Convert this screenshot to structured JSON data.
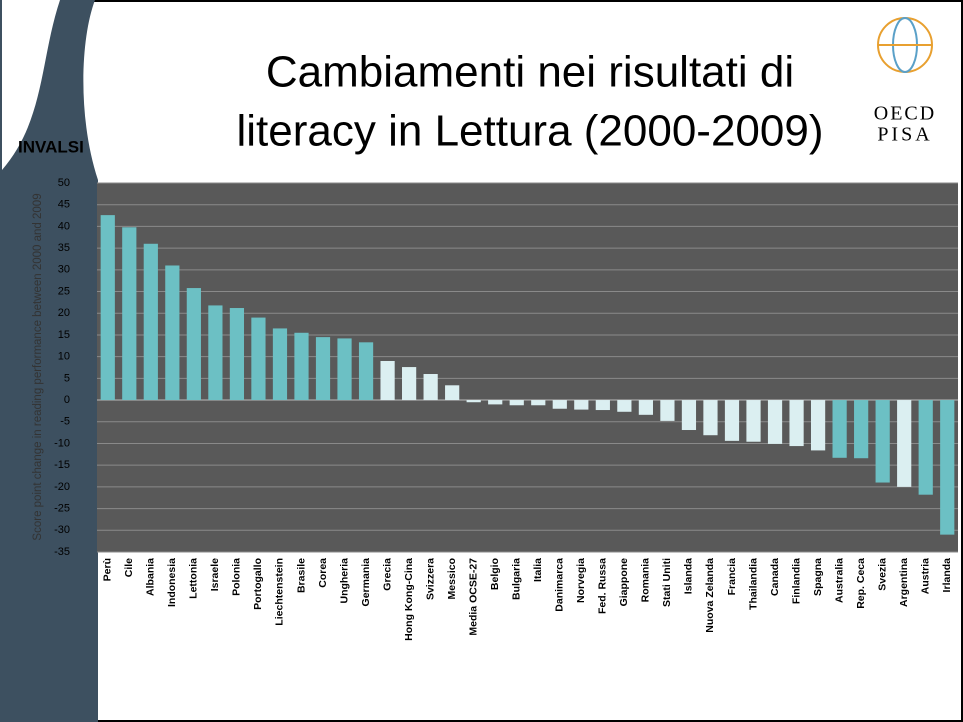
{
  "header": {
    "title_line1": "Cambiamenti nei risultati di",
    "title_line2": "literacy in Lettura (2000-2009)",
    "brand": "INVALSI",
    "logo_top": "OECD",
    "logo_bottom": "PISA"
  },
  "chart_data": {
    "type": "bar",
    "y_label": "Score point change in reading performance between 2000 and 2009",
    "categories": [
      "Perù",
      "Cile",
      "Albania",
      "Indonesia",
      "Lettonia",
      "Israele",
      "Polonia",
      "Portogallo",
      "Liechtenstein",
      "Brasile",
      "Corea",
      "Ungheria",
      "Germania",
      "Grecia",
      "Hong Kong-Cina",
      "Svizzera",
      "Messico",
      "Media OCSE-27",
      "Belgio",
      "Bulgaria",
      "Italia",
      "Danimarca",
      "Norvegia",
      "Fed. Russa",
      "Giappone",
      "Romania",
      "Stati Uniti",
      "Islanda",
      "Nuova Zelanda",
      "Francia",
      "Thailandia",
      "Canada",
      "Finlandia",
      "Spagna",
      "Australia",
      "Rep. Ceca",
      "Svezia",
      "Argentina",
      "Austria",
      "Irlanda"
    ],
    "values": [
      42.6,
      39.8,
      36,
      31,
      25.8,
      21.8,
      21.2,
      19,
      16.5,
      15.5,
      14.5,
      14.2,
      13.3,
      9,
      7.6,
      6,
      3.4,
      -0.5,
      -1,
      -1.2,
      -1.2,
      -2,
      -2.2,
      -2.3,
      -2.7,
      -3.4,
      -4.8,
      -6.9,
      -8.1,
      -9.4,
      -9.6,
      -10.1,
      -10.6,
      -11.6,
      -13.3,
      -13.4,
      -19,
      -20,
      -21.8,
      -31
    ],
    "colors": [
      "#6cc0c4",
      "#6cc0c4",
      "#6cc0c4",
      "#6cc0c4",
      "#6cc0c4",
      "#6cc0c4",
      "#6cc0c4",
      "#6cc0c4",
      "#6cc0c4",
      "#6cc0c4",
      "#6cc0c4",
      "#6cc0c4",
      "#6cc0c4",
      "#dbeff1",
      "#dbeff1",
      "#dbeff1",
      "#dbeff1",
      "#dbeff1",
      "#dbeff1",
      "#dbeff1",
      "#dbeff1",
      "#dbeff1",
      "#dbeff1",
      "#dbeff1",
      "#dbeff1",
      "#dbeff1",
      "#dbeff1",
      "#dbeff1",
      "#dbeff1",
      "#dbeff1",
      "#dbeff1",
      "#dbeff1",
      "#dbeff1",
      "#dbeff1",
      "#6cc0c4",
      "#6cc0c4",
      "#6cc0c4",
      "#dbeff1",
      "#6cc0c4",
      "#6cc0c4"
    ],
    "ylim": [
      -35,
      50
    ],
    "yticks": [
      -35,
      -30,
      -25,
      -20,
      -15,
      -10,
      -5,
      0,
      5,
      10,
      15,
      20,
      25,
      30,
      35,
      40,
      45,
      50
    ],
    "grid": true
  }
}
